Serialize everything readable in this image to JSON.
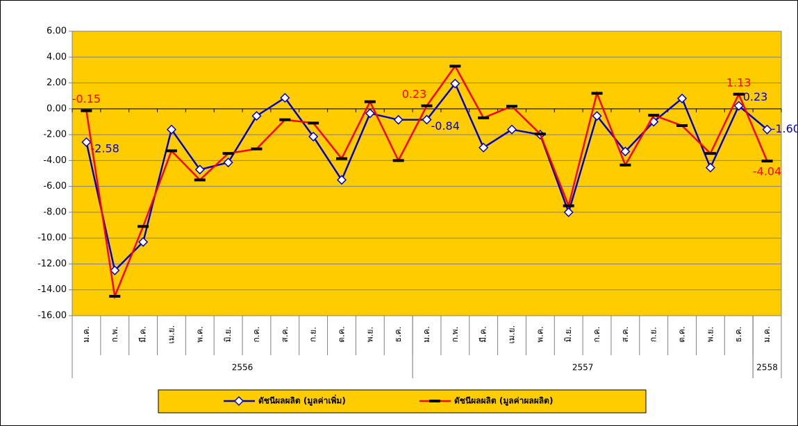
{
  "chart_data": {
    "type": "line",
    "categories": [
      "ม.ค.",
      "ก.พ.",
      "มี.ค.",
      "เม.ย.",
      "พ.ค.",
      "มิ.ย.",
      "ก.ค.",
      "ส.ค.",
      "ก.ย.",
      "ต.ค.",
      "พ.ย.",
      "ธ.ค.",
      "ม.ค.",
      "ก.พ.",
      "มี.ค.",
      "เม.ย.",
      "พ.ค.",
      "มิ.ย.",
      "ก.ค.",
      "ส.ค.",
      "ก.ย.",
      "ต.ค.",
      "พ.ย.",
      "ธ.ค.",
      "ม.ค."
    ],
    "groups": [
      {
        "label": "2556",
        "size": 12
      },
      {
        "label": "2557",
        "size": 12
      },
      {
        "label": "2558",
        "size": 1
      }
    ],
    "series": [
      {
        "name": "ดัชนีผลผลิต (มูลค่าเพิ่ม)",
        "color": "#0000cc",
        "values": [
          -2.58,
          -12.5,
          -10.3,
          -1.6,
          -4.7,
          -4.15,
          -0.55,
          0.85,
          -2.15,
          -5.5,
          -0.35,
          -0.85,
          -0.84,
          1.95,
          -3.0,
          -1.6,
          -2.0,
          -8.0,
          -0.55,
          -3.3,
          -1.0,
          0.8,
          -4.55,
          0.23,
          -1.6
        ],
        "value_labels": [
          "-2.58",
          null,
          null,
          null,
          null,
          null,
          null,
          null,
          null,
          null,
          null,
          null,
          "-0.84",
          null,
          null,
          null,
          null,
          null,
          null,
          null,
          null,
          null,
          null,
          "0.23",
          "-1.60"
        ]
      },
      {
        "name": "ดัชนีผลผลิต (มูลค่าผลผลิต)",
        "color": "#ff0000",
        "values": [
          -0.15,
          -14.5,
          -9.1,
          -3.25,
          -5.5,
          -3.45,
          -3.1,
          -0.85,
          -1.1,
          -3.85,
          0.55,
          -4.0,
          0.23,
          3.3,
          -0.7,
          0.2,
          -1.95,
          -7.5,
          1.2,
          -4.35,
          -0.5,
          -1.3,
          -3.45,
          1.13,
          -4.04
        ],
        "value_labels": [
          "-0.15",
          null,
          null,
          null,
          null,
          null,
          null,
          null,
          null,
          null,
          null,
          null,
          "0.23",
          null,
          null,
          null,
          null,
          null,
          null,
          null,
          null,
          null,
          null,
          "1.13",
          "-4.04"
        ]
      }
    ],
    "ylim": [
      -16,
      6
    ],
    "yticks": [
      {
        "value": -16,
        "label": "-16.00"
      },
      {
        "value": -14,
        "label": "-14.00"
      },
      {
        "value": -12,
        "label": "-12.00"
      },
      {
        "value": -10,
        "label": "-10.00"
      },
      {
        "value": -8,
        "label": "-8.00"
      },
      {
        "value": -6,
        "label": "-6.00"
      },
      {
        "value": -4,
        "label": "-4.00"
      },
      {
        "value": -2,
        "label": "-2.00"
      },
      {
        "value": 0,
        "label": "0.00"
      },
      {
        "value": 2,
        "label": "2.00"
      },
      {
        "value": 4,
        "label": "4.00"
      },
      {
        "value": 6,
        "label": "6.00"
      }
    ],
    "grid": true,
    "legend": "bottom",
    "plot_background": "#ffcc00"
  }
}
